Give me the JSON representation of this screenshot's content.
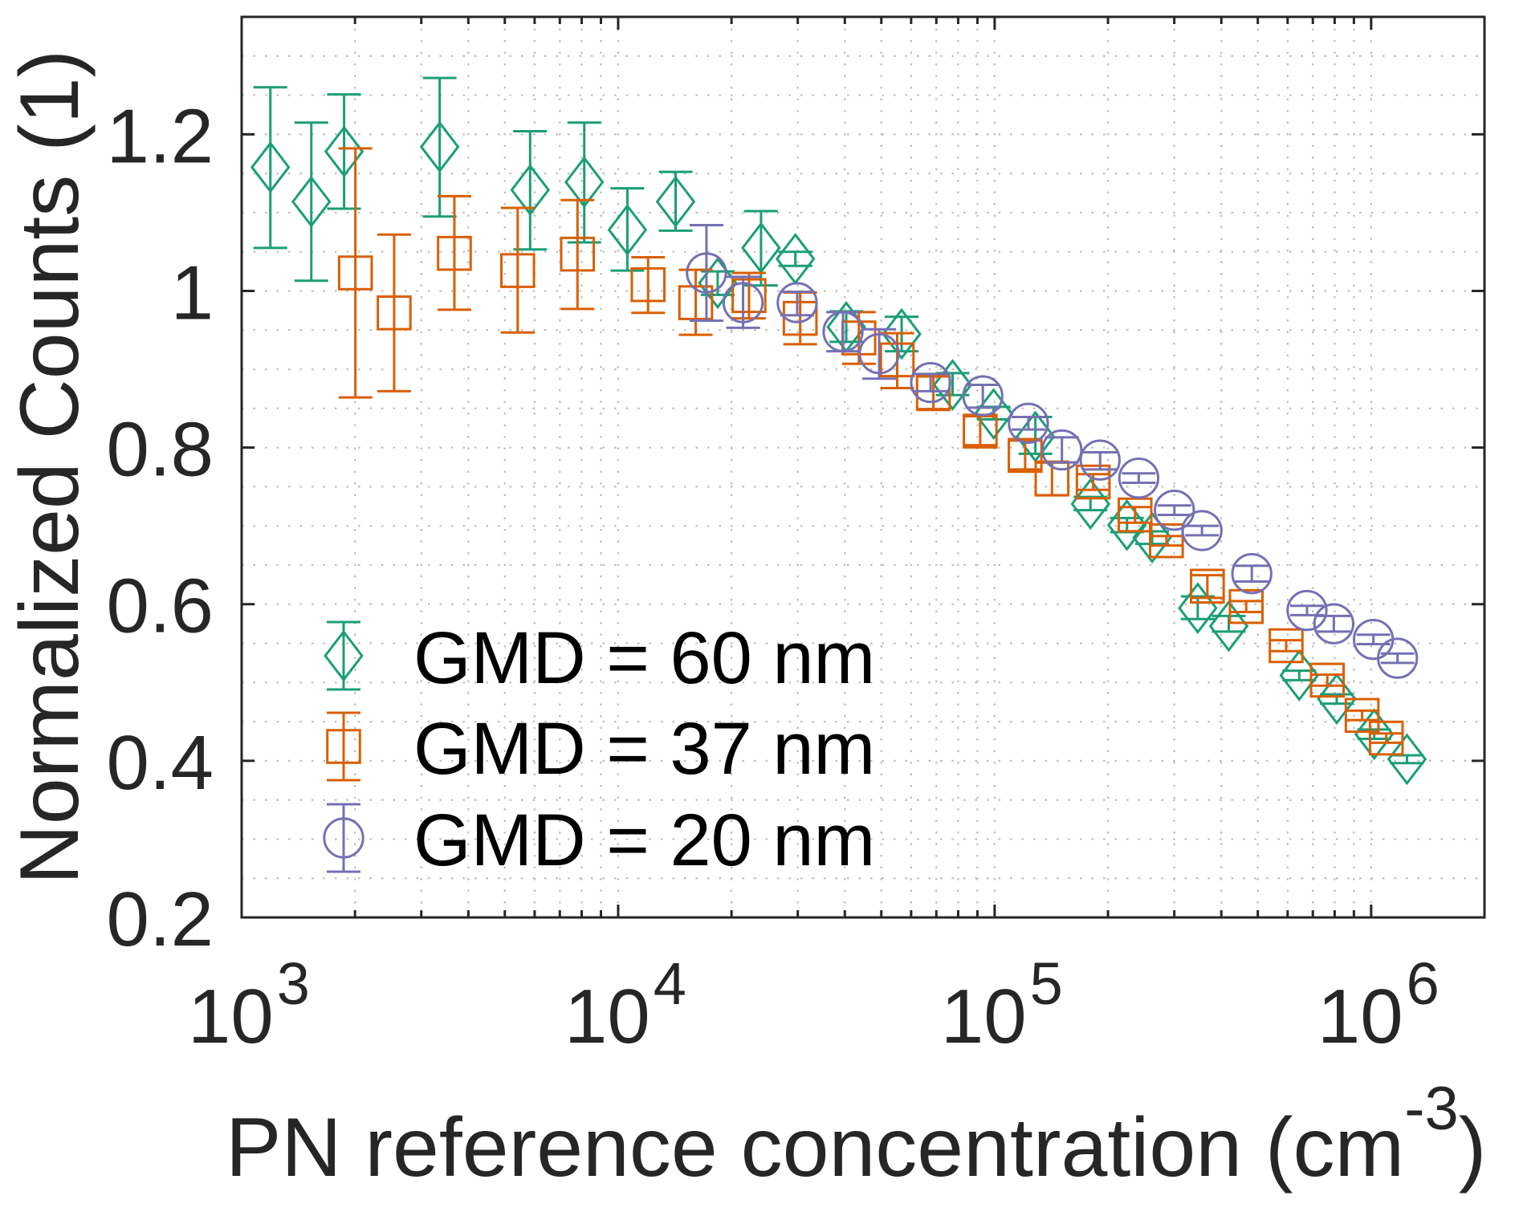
{
  "chart_data": {
    "type": "scatter",
    "subtype": "errorbar",
    "title": "",
    "xlabel": "PN reference concentration (cm",
    "xlabel_superscript": "-3",
    "xlabel_suffix": ")",
    "ylabel": "Normalized Counts (1)",
    "xscale": "log",
    "xlim": [
      1000,
      2000000
    ],
    "ylim": [
      0.2,
      1.35
    ],
    "grid": true,
    "minor_grid": true,
    "legend_position": "bottom-left",
    "x_ticks": [
      {
        "value": 1000,
        "base": "10",
        "exp": "3"
      },
      {
        "value": 10000,
        "base": "10",
        "exp": "4"
      },
      {
        "value": 100000,
        "base": "10",
        "exp": "5"
      },
      {
        "value": 1000000,
        "base": "10",
        "exp": "6"
      }
    ],
    "y_ticks": [
      {
        "value": 0.2,
        "label": "0.2"
      },
      {
        "value": 0.4,
        "label": "0.4"
      },
      {
        "value": 0.6,
        "label": "0.6"
      },
      {
        "value": 0.8,
        "label": "0.8"
      },
      {
        "value": 1.0,
        "label": "1"
      },
      {
        "value": 1.2,
        "label": "1.2"
      }
    ],
    "series": [
      {
        "name": "GMD = 60 nm",
        "marker": "diamond",
        "color": "#1b9e77",
        "points": [
          {
            "x": 1192,
            "y": 1.158,
            "lo": 1.055,
            "hi": 1.26
          },
          {
            "x": 1531,
            "y": 1.114,
            "lo": 1.013,
            "hi": 1.215
          },
          {
            "x": 1871,
            "y": 1.178,
            "lo": 1.105,
            "hi": 1.251
          },
          {
            "x": 3357,
            "y": 1.184,
            "lo": 1.095,
            "hi": 1.272
          },
          {
            "x": 5837,
            "y": 1.129,
            "lo": 1.053,
            "hi": 1.204
          },
          {
            "x": 8128,
            "y": 1.139,
            "lo": 1.062,
            "hi": 1.215
          },
          {
            "x": 10580,
            "y": 1.078,
            "lo": 1.026,
            "hi": 1.131
          },
          {
            "x": 14210,
            "y": 1.114,
            "lo": 1.077,
            "hi": 1.152
          },
          {
            "x": 18380,
            "y": 1.01,
            "lo": 0.995,
            "hi": 1.025
          },
          {
            "x": 23960,
            "y": 1.055,
            "lo": 1.007,
            "hi": 1.102
          },
          {
            "x": 29560,
            "y": 1.041,
            "lo": 1.032,
            "hi": 1.05
          },
          {
            "x": 40350,
            "y": 0.954,
            "lo": 0.935,
            "hi": 0.974
          },
          {
            "x": 56620,
            "y": 0.945,
            "lo": 0.923,
            "hi": 0.967
          },
          {
            "x": 77320,
            "y": 0.88,
            "lo": 0.867,
            "hi": 0.895
          },
          {
            "x": 99360,
            "y": 0.843,
            "lo": 0.836,
            "hi": 0.852
          },
          {
            "x": 128300,
            "y": 0.814,
            "lo": 0.792,
            "hi": 0.839
          },
          {
            "x": 179700,
            "y": 0.728,
            "lo": 0.72,
            "hi": 0.737
          },
          {
            "x": 224600,
            "y": 0.701,
            "lo": 0.692,
            "hi": 0.71
          },
          {
            "x": 262000,
            "y": 0.685,
            "lo": 0.677,
            "hi": 0.693
          },
          {
            "x": 346300,
            "y": 0.595,
            "lo": 0.581,
            "hi": 0.61
          },
          {
            "x": 418600,
            "y": 0.572,
            "lo": 0.565,
            "hi": 0.585
          },
          {
            "x": 644200,
            "y": 0.509,
            "lo": 0.503,
            "hi": 0.515
          },
          {
            "x": 810300,
            "y": 0.479,
            "lo": 0.473,
            "hi": 0.485
          },
          {
            "x": 1019000,
            "y": 0.434,
            "lo": 0.428,
            "hi": 0.44
          },
          {
            "x": 1245000,
            "y": 0.402,
            "lo": 0.397,
            "hi": 0.407
          }
        ]
      },
      {
        "name": "GMD = 37 nm",
        "marker": "square",
        "color": "#d95f02",
        "points": [
          {
            "x": 2005,
            "y": 1.023,
            "lo": 0.864,
            "hi": 1.182
          },
          {
            "x": 2541,
            "y": 0.972,
            "lo": 0.872,
            "hi": 1.072
          },
          {
            "x": 3673,
            "y": 1.048,
            "lo": 0.976,
            "hi": 1.121
          },
          {
            "x": 5409,
            "y": 1.026,
            "lo": 0.947,
            "hi": 1.106
          },
          {
            "x": 7798,
            "y": 1.047,
            "lo": 0.977,
            "hi": 1.116
          },
          {
            "x": 12010,
            "y": 1.008,
            "lo": 0.972,
            "hi": 1.043
          },
          {
            "x": 16070,
            "y": 0.985,
            "lo": 0.944,
            "hi": 1.027
          },
          {
            "x": 22260,
            "y": 0.994,
            "lo": 0.965,
            "hi": 1.023
          },
          {
            "x": 30440,
            "y": 0.965,
            "lo": 0.932,
            "hi": 0.998
          },
          {
            "x": 43590,
            "y": 0.94,
            "lo": 0.907,
            "hi": 0.973
          },
          {
            "x": 55100,
            "y": 0.912,
            "lo": 0.876,
            "hi": 0.946
          },
          {
            "x": 68750,
            "y": 0.87,
            "lo": 0.848,
            "hi": 0.892
          },
          {
            "x": 91540,
            "y": 0.821,
            "lo": 0.803,
            "hi": 0.84
          },
          {
            "x": 120500,
            "y": 0.79,
            "lo": 0.772,
            "hi": 0.809
          },
          {
            "x": 142000,
            "y": 0.76,
            "lo": 0.739,
            "hi": 0.782
          },
          {
            "x": 182700,
            "y": 0.756,
            "lo": 0.746,
            "hi": 0.766
          },
          {
            "x": 236000,
            "y": 0.714,
            "lo": 0.704,
            "hi": 0.724
          },
          {
            "x": 285900,
            "y": 0.681,
            "lo": 0.675,
            "hi": 0.687
          },
          {
            "x": 367300,
            "y": 0.623,
            "lo": 0.608,
            "hi": 0.637
          },
          {
            "x": 465800,
            "y": 0.597,
            "lo": 0.59,
            "hi": 0.604
          },
          {
            "x": 594600,
            "y": 0.547,
            "lo": 0.54,
            "hi": 0.554
          },
          {
            "x": 765000,
            "y": 0.503,
            "lo": 0.496,
            "hi": 0.51
          },
          {
            "x": 946400,
            "y": 0.458,
            "lo": 0.452,
            "hi": 0.464
          },
          {
            "x": 1097000,
            "y": 0.429,
            "lo": 0.423,
            "hi": 0.435
          }
        ]
      },
      {
        "name": "GMD = 20 nm",
        "marker": "circle",
        "color": "#7570b3",
        "points": [
          {
            "x": 17160,
            "y": 1.023,
            "lo": 0.962,
            "hi": 1.084
          },
          {
            "x": 21470,
            "y": 0.985,
            "lo": 0.953,
            "hi": 1.018
          },
          {
            "x": 29890,
            "y": 0.985,
            "lo": 0.969,
            "hi": 0.999
          },
          {
            "x": 39560,
            "y": 0.948,
            "lo": 0.923,
            "hi": 0.973
          },
          {
            "x": 49350,
            "y": 0.92,
            "lo": 0.888,
            "hi": 0.951
          },
          {
            "x": 67600,
            "y": 0.883,
            "lo": 0.872,
            "hi": 0.894
          },
          {
            "x": 93030,
            "y": 0.866,
            "lo": 0.851,
            "hi": 0.88
          },
          {
            "x": 122900,
            "y": 0.831,
            "lo": 0.823,
            "hi": 0.839
          },
          {
            "x": 150900,
            "y": 0.797,
            "lo": 0.781,
            "hi": 0.813
          },
          {
            "x": 190600,
            "y": 0.784,
            "lo": 0.772,
            "hi": 0.794
          },
          {
            "x": 241400,
            "y": 0.761,
            "lo": 0.755,
            "hi": 0.767
          },
          {
            "x": 300200,
            "y": 0.72,
            "lo": 0.714,
            "hi": 0.726
          },
          {
            "x": 355400,
            "y": 0.694,
            "lo": 0.688,
            "hi": 0.7
          },
          {
            "x": 482000,
            "y": 0.639,
            "lo": 0.629,
            "hi": 0.649
          },
          {
            "x": 675500,
            "y": 0.592,
            "lo": 0.586,
            "hi": 0.598
          },
          {
            "x": 795800,
            "y": 0.575,
            "lo": 0.565,
            "hi": 0.585
          },
          {
            "x": 1014000,
            "y": 0.555,
            "lo": 0.549,
            "hi": 0.561
          },
          {
            "x": 1175000,
            "y": 0.531,
            "lo": 0.525,
            "hi": 0.537
          }
        ]
      }
    ]
  }
}
